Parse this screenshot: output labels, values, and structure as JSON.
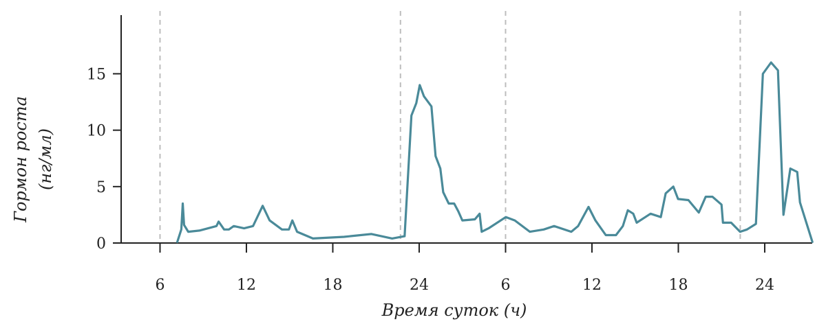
{
  "chart_data": {
    "type": "line",
    "x_label": "Время суток (ч)",
    "y_label": [
      "Гормон роста",
      "(нг/мл)"
    ],
    "xlim": [
      3.3,
      51.3
    ],
    "xticks": [
      6,
      12,
      18,
      24,
      {
        "value": 30,
        "label": "6"
      },
      {
        "value": 36,
        "label": "12"
      },
      {
        "value": 42,
        "label": "18"
      },
      {
        "value": 48,
        "label": "24"
      }
    ],
    "ylim": [
      0,
      20.2
    ],
    "yticks": [
      0,
      5,
      10,
      15
    ],
    "vlines": [
      6,
      22.7,
      30,
      46.3
    ],
    "series": [
      {
        "color": "#4a8a99",
        "x": [
          7.2,
          7.48,
          7.58,
          7.67,
          7.96,
          8.73,
          9.92,
          10.07,
          10.45,
          10.78,
          11.12,
          11.84,
          12.46,
          13.13,
          13.61,
          14.47,
          14.95,
          15.19,
          15.52,
          16.62,
          18.78,
          20.69,
          22.12,
          22.99,
          23.46,
          23.8,
          24.04,
          24.33,
          24.85,
          25.14,
          25.47,
          25.67,
          26.05,
          26.43,
          26.72,
          27.0,
          27.87,
          28.2,
          28.34,
          28.82,
          30.02,
          30.64,
          31.69,
          32.65,
          33.37,
          34.56,
          35.04,
          35.76,
          36.24,
          36.96,
          37.67,
          38.15,
          38.49,
          38.87,
          39.11,
          39.59,
          40.07,
          40.78,
          41.12,
          41.65,
          41.98,
          42.7,
          43.42,
          43.9,
          44.37,
          45.0,
          45.1,
          45.67,
          46.29,
          46.77,
          47.39,
          47.87,
          48.44,
          48.92,
          49.3,
          49.78,
          50.26,
          50.45,
          51.31
        ],
        "values": [
          0.1,
          1.2,
          3.5,
          1.6,
          1.0,
          1.1,
          1.5,
          1.9,
          1.2,
          1.2,
          1.5,
          1.3,
          1.5,
          3.3,
          2.0,
          1.2,
          1.2,
          2.0,
          1.0,
          0.4,
          0.55,
          0.8,
          0.4,
          0.6,
          11.3,
          12.4,
          14.0,
          13.0,
          12.1,
          7.7,
          6.6,
          4.5,
          3.5,
          3.5,
          2.8,
          2.0,
          2.1,
          2.6,
          1.0,
          1.3,
          2.3,
          2.0,
          1.0,
          1.2,
          1.5,
          1.0,
          1.5,
          3.2,
          2.0,
          0.7,
          0.7,
          1.5,
          2.9,
          2.6,
          1.8,
          2.2,
          2.6,
          2.3,
          4.4,
          5.0,
          3.9,
          3.8,
          2.7,
          4.1,
          4.1,
          3.4,
          1.8,
          1.8,
          1.0,
          1.2,
          1.7,
          15.0,
          16.0,
          15.3,
          2.5,
          6.6,
          6.3,
          3.6,
          0.1
        ]
      }
    ]
  }
}
